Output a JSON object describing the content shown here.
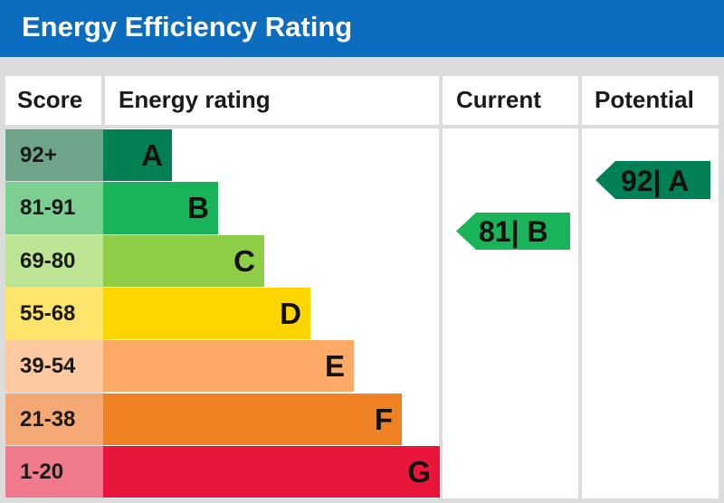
{
  "chart_data": {
    "type": "bar",
    "title": "Energy Efficiency Rating",
    "columns": {
      "score": "Score",
      "rating": "Energy rating",
      "current": "Current",
      "potential": "Potential"
    },
    "bands": [
      {
        "score": "92+",
        "letter": "A",
        "color": "#008054",
        "score_bg": "#6ea487"
      },
      {
        "score": "81-91",
        "letter": "B",
        "color": "#19b459",
        "score_bg": "#7dcf91"
      },
      {
        "score": "69-80",
        "letter": "C",
        "color": "#8dce46",
        "score_bg": "#bde492"
      },
      {
        "score": "55-68",
        "letter": "D",
        "color": "#ffd500",
        "score_bg": "#ffe46b"
      },
      {
        "score": "39-54",
        "letter": "E",
        "color": "#fcaa65",
        "score_bg": "#fdc9a0"
      },
      {
        "score": "21-38",
        "letter": "F",
        "color": "#ef8023",
        "score_bg": "#f4a974"
      },
      {
        "score": "1-20",
        "letter": "G",
        "color": "#e9153b",
        "score_bg": "#f07a8c"
      }
    ],
    "current": {
      "value": 81,
      "letter": "B",
      "label": "81| B",
      "color": "#19b459"
    },
    "potential": {
      "value": 92,
      "letter": "A",
      "label": "92| A",
      "color": "#008054"
    }
  }
}
